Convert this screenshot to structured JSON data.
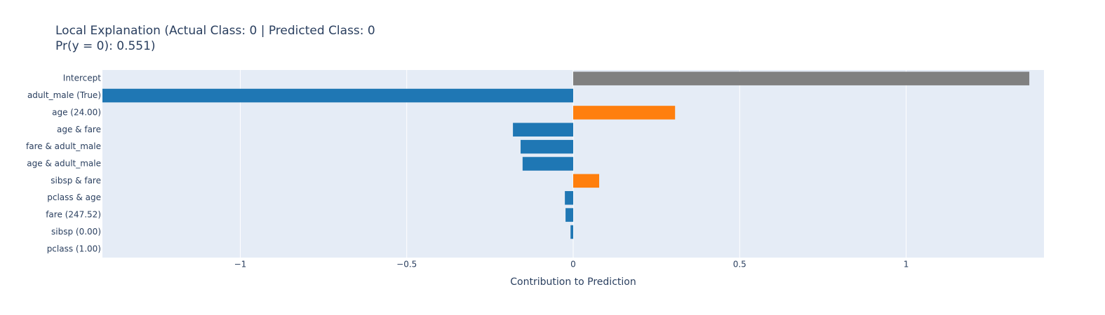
{
  "chart_data": {
    "type": "bar",
    "orientation": "horizontal",
    "title": [
      "Local Explanation (Actual Class: 0 | Predicted Class: 0",
      "Pr(y = 0): 0.551)"
    ],
    "xlabel": "Contribution to Prediction",
    "categories": [
      "Intercept",
      "adult_male (True)",
      "age (24.00)",
      "age & fare",
      "fare & adult_male",
      "age & adult_male",
      "sibsp & fare",
      "pclass & age",
      "fare (247.52)",
      "sibsp (0.00)",
      "pclass (1.00)"
    ],
    "values": [
      1.37,
      -1.414,
      0.306,
      -0.181,
      -0.158,
      -0.152,
      0.078,
      -0.025,
      -0.023,
      -0.008,
      0
    ],
    "colors": [
      "#808080",
      "#1f77b4",
      "#ff7f0e",
      "#1f77b4",
      "#1f77b4",
      "#1f77b4",
      "#ff7f0e",
      "#1f77b4",
      "#1f77b4",
      "#1f77b4",
      "#1f77b4"
    ],
    "xlim": [
      -1.414,
      1.414
    ],
    "xticks": [
      {
        "value": -1,
        "label": "−1"
      },
      {
        "value": -0.5,
        "label": "−0.5"
      },
      0,
      0.5,
      1
    ],
    "grid": true
  }
}
